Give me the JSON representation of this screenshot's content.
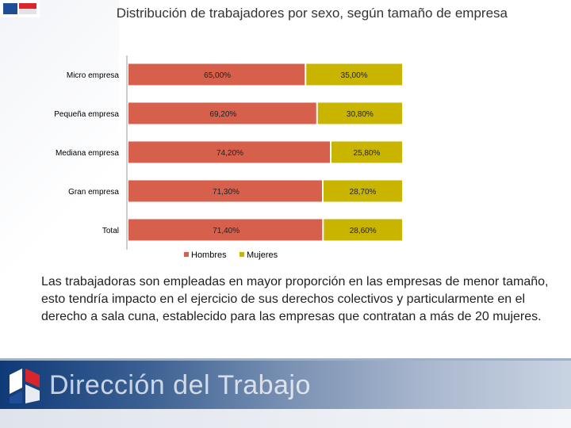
{
  "title": "Distribución de trabajadores por  sexo, según tamaño de empresa",
  "caption": "Las trabajadoras son empleadas en mayor proporción en las empresas de menor tamaño, esto tendría impacto en el ejercicio de sus derechos colectivos y particularmente en el derecho a sala cuna, establecido para las empresas que contratan a más de 20 mujeres.",
  "footer": {
    "brand": "Dirección del Trabajo"
  },
  "icons": {
    "top_logo": "institution-logo-icon",
    "footer_logo": "institution-logo-icon"
  },
  "colors": {
    "hombres": "#d6604b",
    "mujeres": "#c9b400"
  },
  "chart_data": {
    "type": "bar",
    "orientation": "horizontal",
    "stacked": true,
    "categories": [
      "Micro empresa",
      "Pequeña empresa",
      "Mediana empresa",
      "Gran empresa",
      "Total"
    ],
    "series": [
      {
        "name": "Hombres",
        "values": [
          65.0,
          69.2,
          74.2,
          71.3,
          71.4
        ],
        "labels": [
          "65,00%",
          "69,20%",
          "74,20%",
          "71,30%",
          "71,40%"
        ]
      },
      {
        "name": "Mujeres",
        "values": [
          35.0,
          30.8,
          25.8,
          28.7,
          28.6
        ],
        "labels": [
          "35,00%",
          "30,80%",
          "25,80%",
          "28,70%",
          "28,60%"
        ]
      }
    ],
    "xlim": [
      0,
      100
    ],
    "legend": "bottom",
    "grid": false
  }
}
